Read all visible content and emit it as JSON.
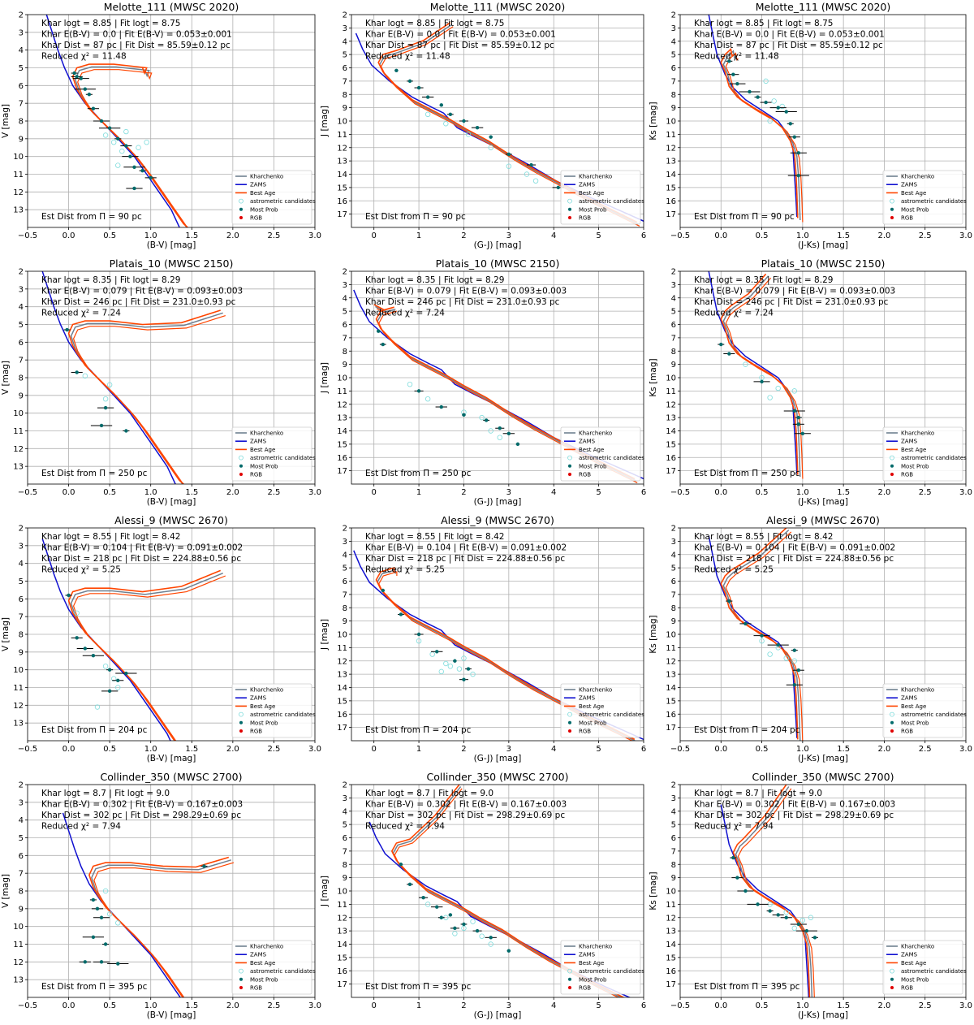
{
  "chart_data": {
    "type": "scatter",
    "legend": {
      "entries": [
        "Kharchenko",
        "ZAMS",
        "Best Age",
        "astrometric candidates",
        "Most Prob",
        "RGB"
      ],
      "colors": [
        "#708090",
        "#1010d0",
        "#ff4500",
        "#7fdcdc",
        "#006a6a",
        "#e00000"
      ],
      "placement": "lower-right"
    },
    "columns": [
      {
        "xlabel": "(B-V) [mag]",
        "ylabel": "V [mag]",
        "xlim": [
          -0.5,
          3.0
        ],
        "xticks": [
          "−0.5",
          "0.0",
          "0.5",
          "1.0",
          "1.5",
          "2.0",
          "2.5",
          "3.0"
        ],
        "ylim_rows": [
          [
            2,
            14
          ],
          [
            2,
            14
          ],
          [
            2,
            14
          ],
          [
            2,
            14
          ]
        ]
      },
      {
        "xlabel": "(G-J) [mag]",
        "ylabel": "J [mag]",
        "xlim": [
          -0.5,
          6.0
        ],
        "xticks": [
          "0",
          "1",
          "2",
          "3",
          "4",
          "5",
          "6"
        ]
      },
      {
        "xlabel": "(J-Ks) [mag]",
        "ylabel": "Ks [mag]",
        "xlim": [
          -0.5,
          3.0
        ],
        "xticks": [
          "−0.5",
          "0.0",
          "0.5",
          "1.0",
          "1.5",
          "2.0",
          "2.5",
          "3.0"
        ]
      }
    ],
    "yticks_col0": [
      "2",
      "3",
      "4",
      "5",
      "6",
      "7",
      "8",
      "9",
      "10",
      "11",
      "12",
      "13"
    ],
    "yticks_col12": [
      "2",
      "3",
      "4",
      "5",
      "6",
      "7",
      "8",
      "9",
      "10",
      "11",
      "12",
      "13",
      "14",
      "15",
      "16",
      "17"
    ],
    "grid": true,
    "clusters": [
      {
        "title": "Melotte_111 (MWSC 2020)",
        "ann": [
          "Khar logt = 8.85 | Fit logt = 8.75",
          "Khar E(B-V) = 0.0  |  Fit E(B-V) = 0.053±0.001",
          "Khar Dist = 87 pc  |  Fit Dist = 85.59±0.12 pc",
          "Reduced χ² = 11.48"
        ],
        "est": "Est Dist from Π = 90 pc",
        "iso_shift": [
          0.05,
          0.05,
          0.0
        ],
        "turnoff": [
          [
            0.9,
            5.0
          ],
          [
            1.7,
            2.6
          ],
          [
            0.15,
            5.0
          ]
        ],
        "iso_dy": [
          0,
          0,
          0
        ],
        "most_prob": [
          [
            [
              0.07,
              5.3
            ],
            [
              0.1,
              5.5
            ],
            [
              0.15,
              5.6
            ],
            [
              0.2,
              6.2
            ],
            [
              0.25,
              6.5
            ],
            [
              0.3,
              7.3
            ],
            [
              0.4,
              8.0
            ],
            [
              0.5,
              8.4
            ],
            [
              0.6,
              9.0
            ],
            [
              0.7,
              9.4
            ],
            [
              0.75,
              10.0
            ],
            [
              0.8,
              10.6
            ],
            [
              0.9,
              10.8
            ],
            [
              1.0,
              11.2
            ],
            [
              0.8,
              11.8
            ]
          ],
          [
            [
              0.5,
              6.2
            ],
            [
              0.8,
              7.0
            ],
            [
              1.0,
              7.5
            ],
            [
              1.2,
              8.2
            ],
            [
              1.5,
              8.8
            ],
            [
              1.7,
              9.5
            ],
            [
              2.0,
              10.0
            ],
            [
              2.3,
              10.5
            ],
            [
              2.6,
              11.2
            ],
            [
              3.0,
              12.5
            ],
            [
              3.5,
              13.3
            ],
            [
              4.1,
              15.0
            ]
          ],
          [
            [
              0.1,
              5.5
            ],
            [
              0.15,
              6.5
            ],
            [
              0.2,
              7.2
            ],
            [
              0.35,
              7.8
            ],
            [
              0.45,
              8.2
            ],
            [
              0.55,
              8.6
            ],
            [
              0.7,
              9.0
            ],
            [
              0.8,
              9.3
            ],
            [
              0.85,
              10.2
            ],
            [
              0.9,
              11.2
            ],
            [
              0.95,
              12.4
            ],
            [
              0.95,
              14.1
            ]
          ]
        ],
        "candidates": [
          [
            [
              0.45,
              8.8
            ],
            [
              0.55,
              9.2
            ],
            [
              0.65,
              9.7
            ],
            [
              0.7,
              8.6
            ],
            [
              0.85,
              9.5
            ],
            [
              0.6,
              10.5
            ],
            [
              0.95,
              9.2
            ]
          ],
          [
            [
              1.2,
              9.5
            ],
            [
              1.6,
              10.2
            ],
            [
              2.1,
              11.0
            ],
            [
              2.6,
              12.0
            ],
            [
              3.0,
              13.4
            ],
            [
              3.4,
              14.0
            ],
            [
              3.6,
              14.5
            ]
          ],
          [
            [
              0.55,
              7.0
            ],
            [
              0.65,
              8.5
            ],
            [
              0.75,
              8.9
            ],
            [
              0.6,
              10.0
            ]
          ]
        ]
      },
      {
        "title": "Platais_10 (MWSC 2150)",
        "ann": [
          "Khar logt = 8.35 | Fit logt = 8.29",
          "Khar E(B-V) = 0.079  |  Fit E(B-V) = 0.093±0.003",
          "Khar Dist = 246 pc  |  Fit Dist = 231.0±0.93 pc",
          "Reduced χ² = 7.24"
        ],
        "est": "Est Dist from Π = 250 pc",
        "iso_shift": [
          0.0,
          0.0,
          0.0
        ],
        "turnoff": [
          [
            1.85,
            4.2
          ],
          [
            0.0,
            4.5
          ],
          [
            0.55,
            2.2
          ]
        ],
        "iso_dy": [
          0,
          0,
          0
        ],
        "most_prob": [
          [
            [
              -0.02,
              5.3
            ],
            [
              0.1,
              7.7
            ],
            [
              0.45,
              9.7
            ],
            [
              0.4,
              10.7
            ],
            [
              0.7,
              11.0
            ]
          ],
          [
            [
              0.1,
              6.5
            ],
            [
              0.2,
              7.5
            ],
            [
              1.0,
              11.0
            ],
            [
              1.5,
              12.2
            ],
            [
              2.0,
              12.8
            ],
            [
              2.5,
              13.2
            ],
            [
              2.8,
              13.8
            ],
            [
              3.0,
              14.2
            ],
            [
              3.2,
              15.0
            ]
          ],
          [
            [
              0.0,
              7.5
            ],
            [
              0.1,
              8.2
            ],
            [
              0.5,
              10.3
            ],
            [
              0.9,
              12.5
            ],
            [
              0.95,
              13.0
            ],
            [
              0.95,
              13.5
            ],
            [
              1.0,
              14.2
            ]
          ]
        ],
        "candidates": [
          [
            [
              0.5,
              8.4
            ],
            [
              0.2,
              7.9
            ],
            [
              0.45,
              9.2
            ]
          ],
          [
            [
              0.8,
              10.5
            ],
            [
              1.2,
              11.6
            ],
            [
              2.0,
              12.6
            ],
            [
              2.4,
              13.0
            ],
            [
              2.6,
              14.0
            ],
            [
              2.8,
              14.5
            ]
          ],
          [
            [
              0.3,
              9.0
            ],
            [
              0.5,
              10.0
            ],
            [
              0.7,
              10.8
            ],
            [
              0.6,
              11.5
            ],
            [
              0.9,
              11.0
            ]
          ]
        ]
      },
      {
        "title": "Alessi_9 (MWSC 2670)",
        "ann": [
          "Khar logt = 8.55 | Fit logt = 8.42",
          "Khar E(B-V) = 0.104  |  Fit E(B-V) = 0.091±0.002",
          "Khar Dist = 218 pc  |  Fit Dist = 224.88±0.56 pc",
          "Reduced χ² = 5.25"
        ],
        "est": "Est Dist from Π = 204 pc",
        "iso_shift": [
          0.0,
          0.0,
          0.0
        ],
        "turnoff": [
          [
            1.85,
            4.4
          ],
          [
            0.45,
            5.0
          ],
          [
            0.8,
            2.0
          ]
        ],
        "iso_dy": [
          0.6,
          0.3,
          0.6
        ],
        "most_prob": [
          [
            [
              0.0,
              5.8
            ],
            [
              0.1,
              8.2
            ],
            [
              0.2,
              8.8
            ],
            [
              0.3,
              9.2
            ],
            [
              0.5,
              10.0
            ],
            [
              0.6,
              10.6
            ],
            [
              0.5,
              11.2
            ],
            [
              0.7,
              10.2
            ]
          ],
          [
            [
              0.2,
              6.7
            ],
            [
              0.6,
              8.5
            ],
            [
              1.0,
              10.0
            ],
            [
              1.4,
              11.3
            ],
            [
              1.8,
              12.0
            ],
            [
              2.1,
              12.6
            ],
            [
              2.0,
              13.4
            ]
          ],
          [
            [
              0.1,
              7.5
            ],
            [
              0.3,
              9.2
            ],
            [
              0.5,
              10.1
            ],
            [
              0.7,
              10.8
            ],
            [
              0.9,
              11.2
            ],
            [
              0.95,
              12.7
            ],
            [
              0.9,
              13.8
            ]
          ]
        ],
        "candidates": [
          [
            [
              0.1,
              6.8
            ],
            [
              0.45,
              9.8
            ],
            [
              0.55,
              10.5
            ],
            [
              0.35,
              12.1
            ],
            [
              0.6,
              11.0
            ]
          ],
          [
            [
              1.0,
              10.5
            ],
            [
              1.3,
              11.5
            ],
            [
              1.6,
              12.2
            ],
            [
              1.9,
              12.6
            ],
            [
              2.2,
              13.0
            ],
            [
              1.7,
              12.4
            ],
            [
              2.0,
              11.8
            ],
            [
              1.5,
              12.8
            ]
          ],
          [
            [
              0.5,
              10.5
            ],
            [
              0.7,
              11.0
            ],
            [
              0.8,
              11.8
            ],
            [
              0.9,
              12.0
            ],
            [
              0.6,
              11.5
            ]
          ]
        ]
      },
      {
        "title": "Collinder_350 (MWSC 2700)",
        "ann": [
          "Khar logt = 8.7 | Fit logt = 9.0",
          "Khar E(B-V) = 0.302  |  Fit E(B-V) = 0.167±0.003",
          "Khar Dist = 302 pc  |  Fit Dist = 298.29±0.69 pc",
          "Reduced χ² = 7.94"
        ],
        "est": "Est Dist from Π = 395 pc",
        "iso_shift": [
          0.25,
          0.35,
          0.15
        ],
        "turnoff": [
          [
            1.95,
            6.1
          ],
          [
            1.9,
            2.0
          ],
          [
            0.8,
            2.0
          ]
        ],
        "iso_dy": [
          1.6,
          1.4,
          1.5
        ],
        "most_prob": [
          [
            [
              0.3,
              8.5
            ],
            [
              0.35,
              9.0
            ],
            [
              0.4,
              9.5
            ],
            [
              0.3,
              10.6
            ],
            [
              0.45,
              11.0
            ],
            [
              0.2,
              12.0
            ],
            [
              0.4,
              12.0
            ],
            [
              0.6,
              12.1
            ],
            [
              1.65,
              6.6
            ]
          ],
          [
            [
              0.6,
              8.0
            ],
            [
              0.8,
              9.5
            ],
            [
              1.1,
              10.5
            ],
            [
              1.4,
              11.2
            ],
            [
              1.7,
              11.8
            ],
            [
              2.0,
              12.5
            ],
            [
              2.3,
              13.0
            ],
            [
              2.6,
              13.5
            ],
            [
              3.0,
              14.5
            ],
            [
              1.5,
              12.0
            ],
            [
              1.8,
              12.8
            ]
          ],
          [
            [
              0.15,
              7.5
            ],
            [
              0.2,
              9.0
            ],
            [
              0.3,
              10.0
            ],
            [
              0.45,
              11.0
            ],
            [
              0.6,
              11.5
            ],
            [
              0.8,
              12.0
            ],
            [
              0.95,
              12.5
            ],
            [
              1.05,
              13.0
            ],
            [
              1.15,
              13.5
            ],
            [
              0.7,
              11.8
            ]
          ]
        ],
        "candidates": [
          [
            [
              0.45,
              8.0
            ],
            [
              0.5,
              9.3
            ],
            [
              0.6,
              9.8
            ]
          ],
          [
            [
              1.2,
              11.0
            ],
            [
              1.6,
              12.0
            ],
            [
              2.0,
              12.8
            ],
            [
              2.4,
              13.4
            ],
            [
              1.8,
              13.2
            ],
            [
              2.2,
              12.3
            ],
            [
              2.6,
              14.0
            ]
          ],
          [
            [
              0.6,
              11.0
            ],
            [
              0.8,
              11.6
            ],
            [
              1.0,
              12.2
            ],
            [
              0.9,
              12.8
            ],
            [
              1.1,
              12.0
            ]
          ]
        ]
      }
    ]
  }
}
